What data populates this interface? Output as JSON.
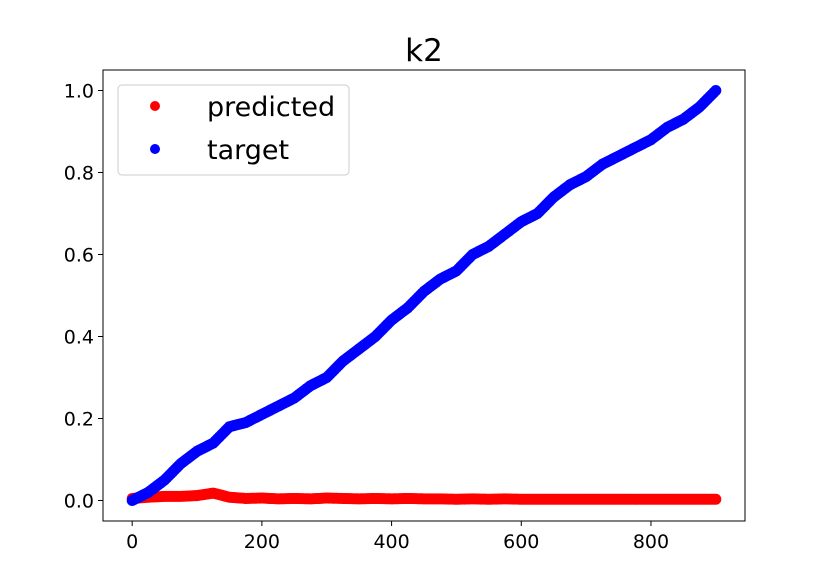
{
  "chart_data": {
    "type": "scatter",
    "title": "k2",
    "xlabel": "",
    "ylabel": "",
    "xlim": [
      -45,
      945
    ],
    "ylim": [
      -0.05,
      1.05
    ],
    "xticks": [
      0,
      200,
      400,
      600,
      800
    ],
    "xtick_labels": [
      "0",
      "200",
      "400",
      "600",
      "800"
    ],
    "yticks": [
      0.0,
      0.2,
      0.4,
      0.6,
      0.8,
      1.0
    ],
    "ytick_labels": [
      "0.0",
      "0.2",
      "0.4",
      "0.6",
      "0.8",
      "1.0"
    ],
    "grid": false,
    "legend_position": "upper-left",
    "series": [
      {
        "name": "predicted",
        "color": "#ff0000",
        "x": [
          0,
          25,
          50,
          75,
          100,
          125,
          150,
          175,
          200,
          225,
          250,
          275,
          300,
          325,
          350,
          375,
          400,
          425,
          450,
          475,
          500,
          525,
          550,
          575,
          600,
          625,
          650,
          675,
          700,
          725,
          750,
          775,
          800,
          825,
          850,
          875,
          900
        ],
        "y": [
          0.005,
          0.008,
          0.01,
          0.01,
          0.012,
          0.018,
          0.008,
          0.005,
          0.006,
          0.004,
          0.005,
          0.004,
          0.006,
          0.005,
          0.004,
          0.005,
          0.004,
          0.005,
          0.004,
          0.004,
          0.003,
          0.004,
          0.003,
          0.004,
          0.003,
          0.003,
          0.003,
          0.003,
          0.003,
          0.003,
          0.003,
          0.003,
          0.003,
          0.003,
          0.003,
          0.003,
          0.003
        ]
      },
      {
        "name": "target",
        "color": "#0000ff",
        "x": [
          0,
          25,
          50,
          75,
          100,
          125,
          150,
          175,
          200,
          225,
          250,
          275,
          300,
          325,
          350,
          375,
          400,
          425,
          450,
          475,
          500,
          525,
          550,
          575,
          600,
          625,
          650,
          675,
          700,
          725,
          750,
          775,
          800,
          825,
          850,
          875,
          900
        ],
        "y": [
          0.0,
          0.02,
          0.05,
          0.09,
          0.12,
          0.14,
          0.18,
          0.19,
          0.21,
          0.23,
          0.25,
          0.28,
          0.3,
          0.34,
          0.37,
          0.4,
          0.44,
          0.47,
          0.51,
          0.54,
          0.56,
          0.6,
          0.62,
          0.65,
          0.68,
          0.7,
          0.74,
          0.77,
          0.79,
          0.82,
          0.84,
          0.86,
          0.88,
          0.91,
          0.93,
          0.96,
          1.0
        ]
      }
    ]
  }
}
